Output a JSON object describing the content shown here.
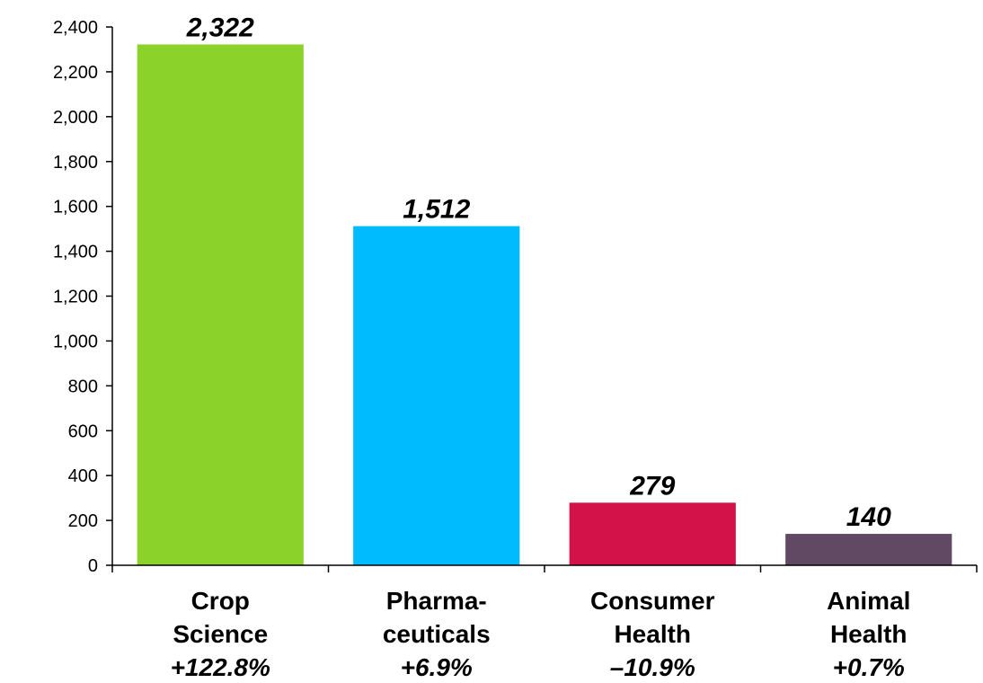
{
  "chart_data": {
    "type": "bar",
    "title": "",
    "xlabel": "",
    "ylabel": "",
    "ylim": [
      0,
      2400
    ],
    "yticks": [
      0,
      200,
      400,
      600,
      800,
      1000,
      1200,
      1400,
      1600,
      1800,
      2000,
      2200,
      2400
    ],
    "ytick_labels": [
      "0",
      "200",
      "400",
      "600",
      "800",
      "1,000",
      "1,200",
      "1,400",
      "1,600",
      "1,800",
      "2,000",
      "2,200",
      "2,400"
    ],
    "grid": false,
    "legend": "none",
    "categories": [
      "Crop Science",
      "Pharmaceuticals",
      "Consumer Health",
      "Animal Health"
    ],
    "category_label_lines": [
      [
        "Crop",
        "Science"
      ],
      [
        "Pharma-",
        "ceuticals"
      ],
      [
        "Consumer",
        "Health"
      ],
      [
        "Animal",
        "Health"
      ]
    ],
    "values": [
      2322,
      1512,
      279,
      140
    ],
    "value_labels": [
      "2,322",
      "1,512",
      "279",
      "140"
    ],
    "changes": [
      "+122.8%",
      "+6.9%",
      "–10.9%",
      "+0.7%"
    ],
    "colors": [
      "#8BD22B",
      "#00BCFF",
      "#D4124A",
      "#624963"
    ]
  }
}
